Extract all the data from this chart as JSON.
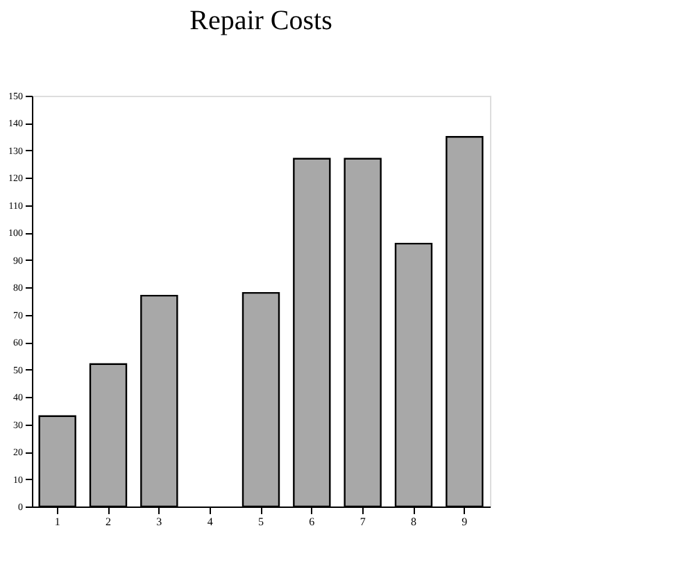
{
  "chart_data": {
    "type": "bar",
    "title": "Repair Costs",
    "categories": [
      "1",
      "2",
      "3",
      "4",
      "5",
      "6",
      "7",
      "8",
      "9"
    ],
    "values": [
      33,
      52,
      77,
      null,
      78,
      127,
      127,
      96,
      135
    ],
    "color": "#a8a8a8",
    "ylim": [
      0,
      150
    ],
    "yticks": [
      0,
      10,
      20,
      30,
      40,
      50,
      60,
      70,
      80,
      90,
      100,
      110,
      120,
      130,
      140,
      150
    ],
    "grid": false
  }
}
